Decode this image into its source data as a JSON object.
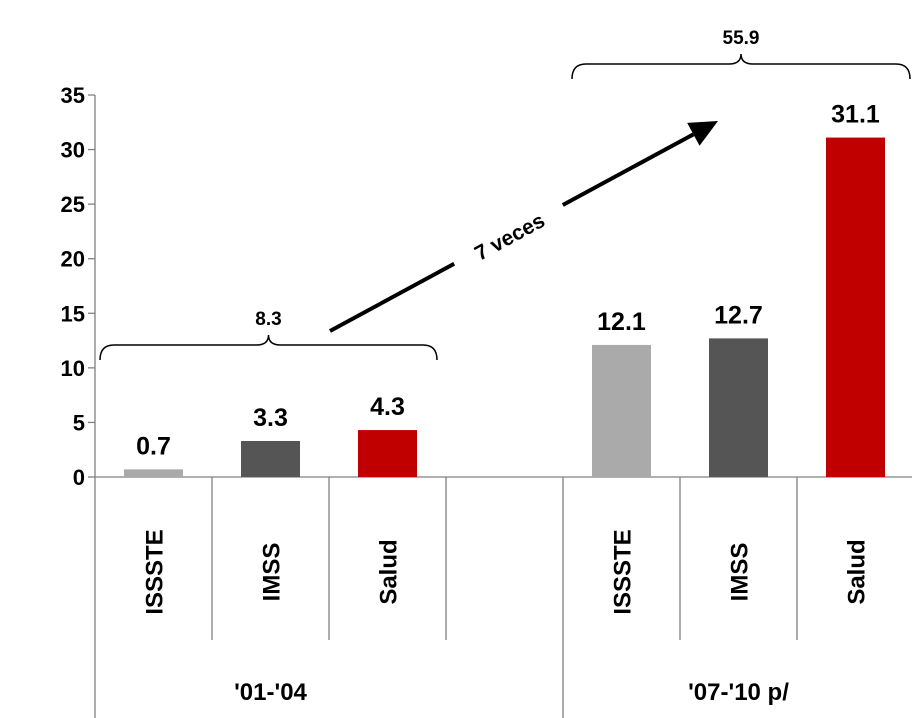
{
  "chart_data": {
    "type": "bar",
    "ylim": [
      0,
      35
    ],
    "yticks": [
      0,
      5,
      10,
      15,
      20,
      25,
      30,
      35
    ],
    "groups": [
      {
        "label": "'01-'04",
        "total_label": "8.3",
        "bars": [
          {
            "category": "ISSSTE",
            "value": 0.7,
            "label": "0.7",
            "color": "#aaaaaa"
          },
          {
            "category": "IMSS",
            "value": 3.3,
            "label": "3.3",
            "color": "#555555"
          },
          {
            "category": "Salud",
            "value": 4.3,
            "label": "4.3",
            "color": "#c00000"
          }
        ]
      },
      {
        "label": "'07-'10 p/",
        "total_label": "55.9",
        "bars": [
          {
            "category": "ISSSTE",
            "value": 12.1,
            "label": "12.1",
            "color": "#aaaaaa"
          },
          {
            "category": "IMSS",
            "value": 12.7,
            "label": "12.7",
            "color": "#555555"
          },
          {
            "category": "Salud",
            "value": 31.1,
            "label": "31.1",
            "color": "#c00000"
          }
        ]
      }
    ],
    "annotation": "7 veces",
    "grid": false
  }
}
